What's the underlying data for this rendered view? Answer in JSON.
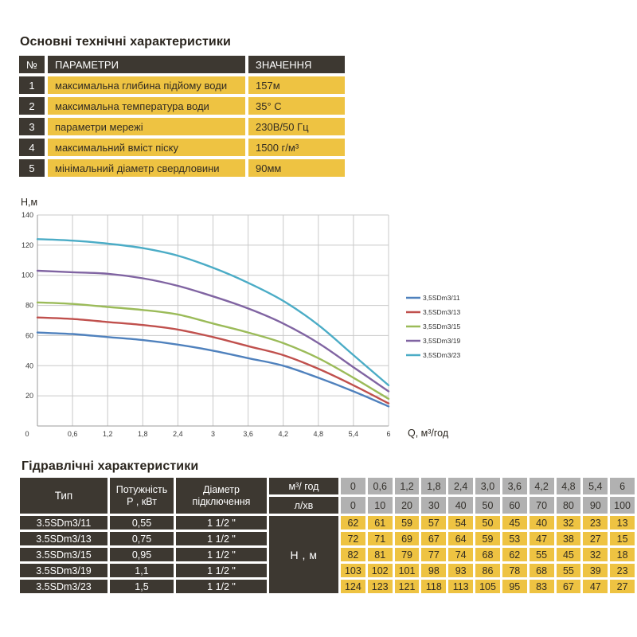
{
  "colors": {
    "dark_cell": "#3d3831",
    "yellow_cell": "#eec342",
    "gray_cell": "#b1b1b1",
    "title_text": "#2a251e",
    "grid_line": "#c9c9c9",
    "axis_line": "#9b9b9b",
    "tick_text": "#3a3a3a"
  },
  "tech_section": {
    "title": "Основні технічні характеристики",
    "headers": {
      "num": "№",
      "param": "ПАРАМЕТРИ",
      "value": "ЗНАЧЕННЯ"
    },
    "rows": [
      {
        "num": "1",
        "param": "максимальна глибина підйому води",
        "value": "157м"
      },
      {
        "num": "2",
        "param": "максимальна температура води",
        "value": "35° С"
      },
      {
        "num": "3",
        "param": "параметри мережі",
        "value": "230В/50 Гц"
      },
      {
        "num": "4",
        "param": "максимальний вміст піску",
        "value": "1500 г/м³"
      },
      {
        "num": "5",
        "param": "мінімальний діаметр свердловини",
        "value": "90мм"
      }
    ]
  },
  "chart_data": {
    "type": "line",
    "title": "",
    "ylabel": "H,м",
    "xlabel": "Q,  м³/год",
    "x": [
      0,
      0.6,
      1.2,
      1.8,
      2.4,
      3,
      3.6,
      4.2,
      4.8,
      5.4,
      6
    ],
    "x_tick_labels": [
      "0,6",
      "1,2",
      "1,8",
      "2,4",
      "3",
      "3,6",
      "4,2",
      "4,8",
      "5,4",
      "6"
    ],
    "origin_label": "0",
    "y_ticks": [
      20,
      40,
      60,
      80,
      100,
      120,
      140
    ],
    "xlim": [
      0,
      6
    ],
    "ylim": [
      0,
      140
    ],
    "grid": true,
    "legend_position": "right",
    "series": [
      {
        "name": "3,5SDm3/11",
        "color": "#4F81BD",
        "values": [
          62,
          61,
          59,
          57,
          54,
          50,
          45,
          40,
          32,
          23,
          13
        ]
      },
      {
        "name": "3,5SDm3/13",
        "color": "#C0504D",
        "values": [
          72,
          71,
          69,
          67,
          64,
          59,
          53,
          47,
          38,
          27,
          15
        ]
      },
      {
        "name": "3,5SDm3/15",
        "color": "#9BBB59",
        "values": [
          82,
          81,
          79,
          77,
          74,
          68,
          62,
          55,
          45,
          32,
          18
        ]
      },
      {
        "name": "3,5SDm3/19",
        "color": "#8064A2",
        "values": [
          103,
          102,
          101,
          98,
          93,
          86,
          78,
          68,
          55,
          39,
          23
        ]
      },
      {
        "name": "3,5SDm3/23",
        "color": "#4BACC6",
        "values": [
          124,
          123,
          121,
          118,
          113,
          105,
          95,
          83,
          67,
          47,
          27
        ]
      }
    ]
  },
  "hydraulic_section": {
    "title": "Гідравлічні характеристики",
    "headers": {
      "type": "Тип",
      "power": [
        "Потужність",
        "Р , кВт"
      ],
      "diameter": [
        "Діаметр",
        "підключення"
      ],
      "flow_m3h": "м³/ год",
      "flow_lmin": "л/хв",
      "head": "Н , м"
    },
    "flow_m3h_values": [
      "0",
      "0,6",
      "1,2",
      "1,8",
      "2,4",
      "3,0",
      "3,6",
      "4,2",
      "4,8",
      "5,4",
      "6"
    ],
    "flow_lmin_values": [
      "0",
      "10",
      "20",
      "30",
      "40",
      "50",
      "60",
      "70",
      "80",
      "90",
      "100"
    ],
    "rows": [
      {
        "type": "3.5SDm3/11",
        "power": "0,55",
        "diameter": "1 1/2 \"",
        "head_m": [
          "62",
          "61",
          "59",
          "57",
          "54",
          "50",
          "45",
          "40",
          "32",
          "23",
          "13"
        ]
      },
      {
        "type": "3.5SDm3/13",
        "power": "0,75",
        "diameter": "1 1/2 \"",
        "head_m": [
          "72",
          "71",
          "69",
          "67",
          "64",
          "59",
          "53",
          "47",
          "38",
          "27",
          "15"
        ]
      },
      {
        "type": "3.5SDm3/15",
        "power": "0,95",
        "diameter": "1 1/2 \"",
        "head_m": [
          "82",
          "81",
          "79",
          "77",
          "74",
          "68",
          "62",
          "55",
          "45",
          "32",
          "18"
        ]
      },
      {
        "type": "3.5SDm3/19",
        "power": "1,1",
        "diameter": "1 1/2 \"",
        "head_m": [
          "103",
          "102",
          "101",
          "98",
          "93",
          "86",
          "78",
          "68",
          "55",
          "39",
          "23"
        ]
      },
      {
        "type": "3.5SDm3/23",
        "power": "1,5",
        "diameter": "1 1/2 \"",
        "head_m": [
          "124",
          "123",
          "121",
          "118",
          "113",
          "105",
          "95",
          "83",
          "67",
          "47",
          "27"
        ]
      }
    ]
  }
}
